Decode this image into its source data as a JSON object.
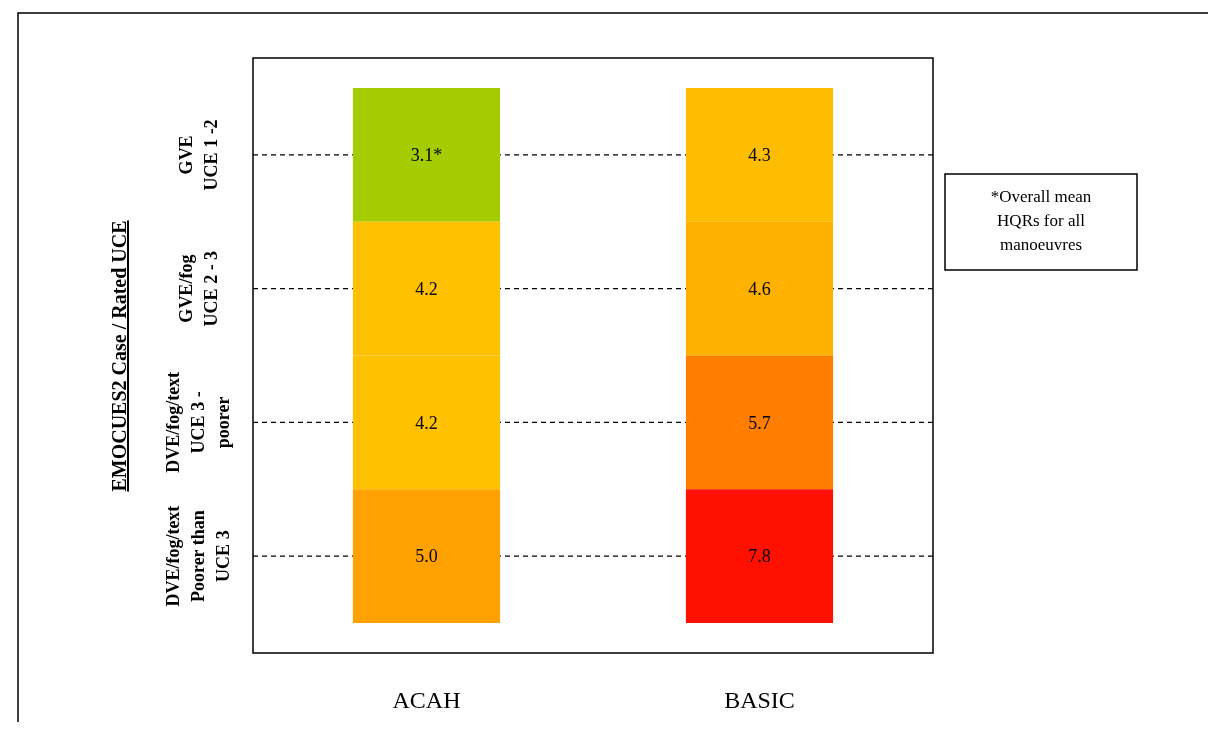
{
  "chart_data": {
    "type": "heatmap",
    "ylabel": "EMOCUES2 Case / Rated UCE",
    "categories": [
      "ACAH",
      "BASIC"
    ],
    "y_categories": [
      "GVE\nUCE 1 -2",
      "GVE/fog\nUCE 2 - 3",
      "DVE/fog/text\nUCE 3 -\npoorer",
      "DVE/fog/text\nPoorer than\nUCE 3"
    ],
    "cells": [
      [
        3.1,
        4.3
      ],
      [
        4.2,
        4.6
      ],
      [
        4.2,
        5.7
      ],
      [
        5.0,
        7.8
      ]
    ],
    "cell_labels": [
      [
        "3.1*",
        "4.3"
      ],
      [
        "4.2",
        "4.6"
      ],
      [
        "4.2",
        "5.7"
      ],
      [
        "5.0",
        "7.8"
      ]
    ],
    "grid": true,
    "annotations": [
      "*Overall mean\nHQRs for all\nmanoeuvres"
    ]
  }
}
